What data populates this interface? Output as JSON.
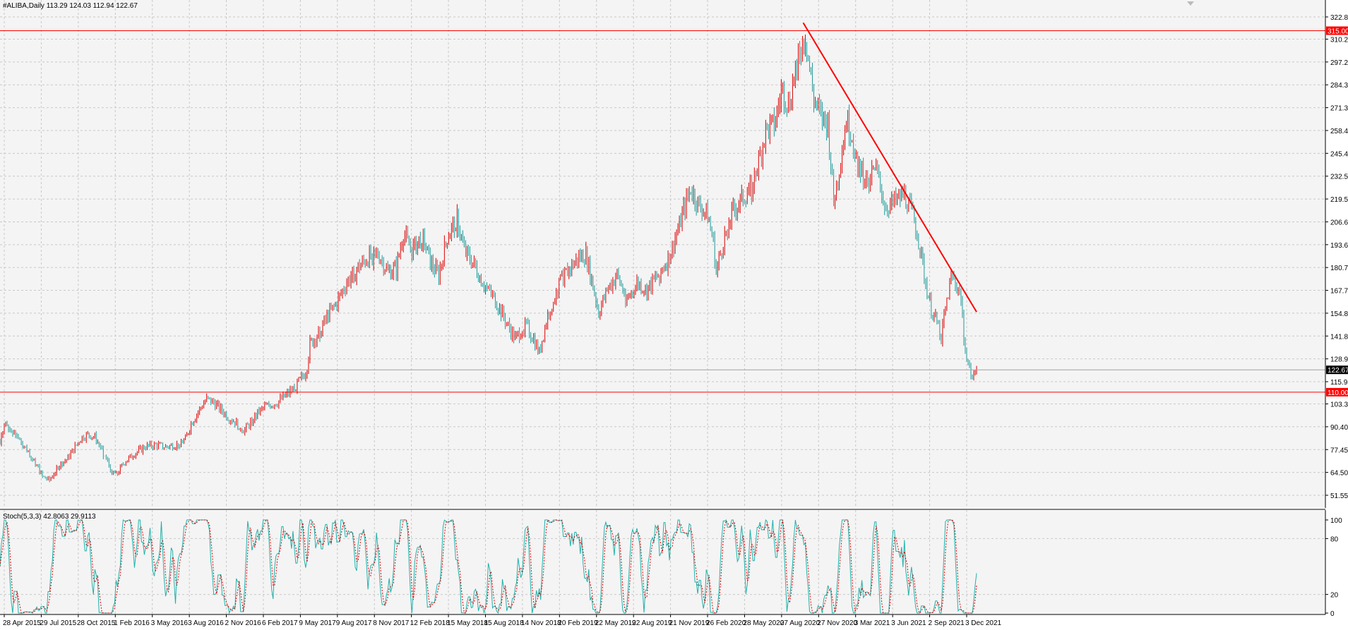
{
  "symbol_header": "#ALIBA,Daily  113.29 124.03 112.94 122.67",
  "stoch_header": "Stoch(5,3,3) 42.8063 29.9113",
  "colors": {
    "background": "#ffffff",
    "plot_bg": "#f4f4f4",
    "grid": "#c8c8c8",
    "bull_candle": "#dd0000",
    "bear_candle": "#1f9a9a",
    "level_line": "#ff0000",
    "trendline": "#ff0000",
    "stoch_main": "#20b2aa",
    "stoch_signal": "#dd0000",
    "current_price_tag": "#000000"
  },
  "chart_data": [
    {
      "type": "candlestick",
      "title": "#ALIBA,Daily",
      "header_values": {
        "open": 113.29,
        "high": 124.03,
        "low": 112.94,
        "close": 122.67
      },
      "ylim": [
        51.55,
        327.0
      ],
      "y_ticks": [
        "322.80",
        "310.20",
        "297.25",
        "284.30",
        "271.35",
        "258.40",
        "245.45",
        "232.50",
        "219.55",
        "206.60",
        "193.65",
        "180.70",
        "167.75",
        "154.80",
        "141.85",
        "128.90",
        "115.95",
        "103.35",
        "90.40",
        "77.45",
        "64.50",
        "51.55"
      ],
      "x_tick_labels": [
        "28 Apr 2015",
        "29 Jul 2015",
        "28 Oct 2015",
        "1 Feb 2016",
        "3 May 2016",
        "3 Aug 2016",
        "2 Nov 2016",
        "6 Feb 2017",
        "9 May 2017",
        "9 Aug 2017",
        "8 Nov 2017",
        "12 Feb 2018",
        "15 May 2018",
        "15 Aug 2018",
        "14 Nov 2018",
        "20 Feb 2019",
        "22 May 2019",
        "22 Aug 2019",
        "21 Nov 2019",
        "26 Feb 2020",
        "28 May 2020",
        "27 Aug 2020",
        "27 Nov 2020",
        "3 Mar 2021",
        "3 Jun 2021",
        "2 Sep 2021",
        "3 Dec 2021"
      ],
      "price_path": [
        {
          "t": 0,
          "v": 82
        },
        {
          "t": 6,
          "v": 92
        },
        {
          "t": 15,
          "v": 88
        },
        {
          "t": 28,
          "v": 83
        },
        {
          "t": 40,
          "v": 76
        },
        {
          "t": 50,
          "v": 70
        },
        {
          "t": 60,
          "v": 62
        },
        {
          "t": 70,
          "v": 60
        },
        {
          "t": 82,
          "v": 68
        },
        {
          "t": 95,
          "v": 72
        },
        {
          "t": 108,
          "v": 80
        },
        {
          "t": 115,
          "v": 84
        },
        {
          "t": 125,
          "v": 86
        },
        {
          "t": 135,
          "v": 84
        },
        {
          "t": 143,
          "v": 78
        },
        {
          "t": 150,
          "v": 72
        },
        {
          "t": 158,
          "v": 65
        },
        {
          "t": 165,
          "v": 63
        },
        {
          "t": 175,
          "v": 70
        },
        {
          "t": 190,
          "v": 75
        },
        {
          "t": 205,
          "v": 79
        },
        {
          "t": 220,
          "v": 80
        },
        {
          "t": 235,
          "v": 79
        },
        {
          "t": 250,
          "v": 80
        },
        {
          "t": 262,
          "v": 83
        },
        {
          "t": 270,
          "v": 92
        },
        {
          "t": 282,
          "v": 100
        },
        {
          "t": 292,
          "v": 106
        },
        {
          "t": 302,
          "v": 104
        },
        {
          "t": 312,
          "v": 100
        },
        {
          "t": 322,
          "v": 96
        },
        {
          "t": 335,
          "v": 92
        },
        {
          "t": 345,
          "v": 88
        },
        {
          "t": 360,
          "v": 96
        },
        {
          "t": 375,
          "v": 102
        },
        {
          "t": 392,
          "v": 104
        },
        {
          "t": 410,
          "v": 110
        },
        {
          "t": 425,
          "v": 117
        },
        {
          "t": 433,
          "v": 122
        },
        {
          "t": 438,
          "v": 137
        },
        {
          "t": 448,
          "v": 142
        },
        {
          "t": 462,
          "v": 152
        },
        {
          "t": 475,
          "v": 160
        },
        {
          "t": 490,
          "v": 172
        },
        {
          "t": 505,
          "v": 180
        },
        {
          "t": 520,
          "v": 186
        },
        {
          "t": 535,
          "v": 188
        },
        {
          "t": 548,
          "v": 178
        },
        {
          "t": 560,
          "v": 180
        },
        {
          "t": 570,
          "v": 200
        },
        {
          "t": 582,
          "v": 190
        },
        {
          "t": 596,
          "v": 198
        },
        {
          "t": 610,
          "v": 182
        },
        {
          "t": 620,
          "v": 176
        },
        {
          "t": 632,
          "v": 198
        },
        {
          "t": 646,
          "v": 208
        },
        {
          "t": 656,
          "v": 190
        },
        {
          "t": 670,
          "v": 182
        },
        {
          "t": 685,
          "v": 170
        },
        {
          "t": 700,
          "v": 162
        },
        {
          "t": 715,
          "v": 150
        },
        {
          "t": 728,
          "v": 140
        },
        {
          "t": 742,
          "v": 148
        },
        {
          "t": 754,
          "v": 140
        },
        {
          "t": 762,
          "v": 132
        },
        {
          "t": 775,
          "v": 155
        },
        {
          "t": 790,
          "v": 172
        },
        {
          "t": 805,
          "v": 180
        },
        {
          "t": 818,
          "v": 186
        },
        {
          "t": 828,
          "v": 188
        },
        {
          "t": 838,
          "v": 170
        },
        {
          "t": 846,
          "v": 155
        },
        {
          "t": 858,
          "v": 168
        },
        {
          "t": 872,
          "v": 176
        },
        {
          "t": 886,
          "v": 162
        },
        {
          "t": 900,
          "v": 172
        },
        {
          "t": 914,
          "v": 168
        },
        {
          "t": 930,
          "v": 176
        },
        {
          "t": 945,
          "v": 186
        },
        {
          "t": 958,
          "v": 202
        },
        {
          "t": 970,
          "v": 218
        },
        {
          "t": 976,
          "v": 225
        },
        {
          "t": 988,
          "v": 215
        },
        {
          "t": 1000,
          "v": 210
        },
        {
          "t": 1008,
          "v": 195
        },
        {
          "t": 1012,
          "v": 178
        },
        {
          "t": 1022,
          "v": 195
        },
        {
          "t": 1035,
          "v": 212
        },
        {
          "t": 1050,
          "v": 220
        },
        {
          "t": 1062,
          "v": 226
        },
        {
          "t": 1072,
          "v": 240
        },
        {
          "t": 1082,
          "v": 258
        },
        {
          "t": 1095,
          "v": 262
        },
        {
          "t": 1105,
          "v": 282
        },
        {
          "t": 1115,
          "v": 272
        },
        {
          "t": 1125,
          "v": 296
        },
        {
          "t": 1132,
          "v": 306
        },
        {
          "t": 1138,
          "v": 312
        },
        {
          "t": 1143,
          "v": 296
        },
        {
          "t": 1150,
          "v": 276
        },
        {
          "t": 1160,
          "v": 266
        },
        {
          "t": 1170,
          "v": 262
        },
        {
          "t": 1178,
          "v": 218
        },
        {
          "t": 1186,
          "v": 236
        },
        {
          "t": 1196,
          "v": 264
        },
        {
          "t": 1203,
          "v": 256
        },
        {
          "t": 1212,
          "v": 240
        },
        {
          "t": 1225,
          "v": 230
        },
        {
          "t": 1238,
          "v": 236
        },
        {
          "t": 1252,
          "v": 214
        },
        {
          "t": 1266,
          "v": 218
        },
        {
          "t": 1278,
          "v": 222
        },
        {
          "t": 1290,
          "v": 210
        },
        {
          "t": 1300,
          "v": 192
        },
        {
          "t": 1308,
          "v": 172
        },
        {
          "t": 1315,
          "v": 158
        },
        {
          "t": 1323,
          "v": 150
        },
        {
          "t": 1330,
          "v": 142
        },
        {
          "t": 1338,
          "v": 162
        },
        {
          "t": 1345,
          "v": 176
        },
        {
          "t": 1352,
          "v": 170
        },
        {
          "t": 1358,
          "v": 164
        },
        {
          "t": 1362,
          "v": 142
        },
        {
          "t": 1368,
          "v": 126
        },
        {
          "t": 1374,
          "v": 118
        },
        {
          "t": 1380,
          "v": 122.67
        }
      ],
      "horizontal_levels": [
        {
          "price": 315.0,
          "label": "315.00"
        },
        {
          "price": 110.0,
          "label": "110.00"
        }
      ],
      "current_price": {
        "price": 122.67,
        "label": "122.67"
      },
      "trendline": {
        "from": {
          "t": 1135,
          "v": 319.5
        },
        "to": {
          "t": 1380,
          "v": 155.5
        }
      },
      "grid": true
    },
    {
      "type": "line",
      "title": "Stoch(5,3,3)",
      "header_values": {
        "main": 42.8063,
        "signal": 29.9113
      },
      "ylim": [
        0,
        100
      ],
      "y_ticks": [
        "100",
        "80",
        "20",
        "0"
      ],
      "levels": [
        80,
        20
      ],
      "series": [
        {
          "role": "main",
          "last": 42.8063
        },
        {
          "role": "signal",
          "last": 29.9113
        }
      ],
      "grid": true
    }
  ]
}
